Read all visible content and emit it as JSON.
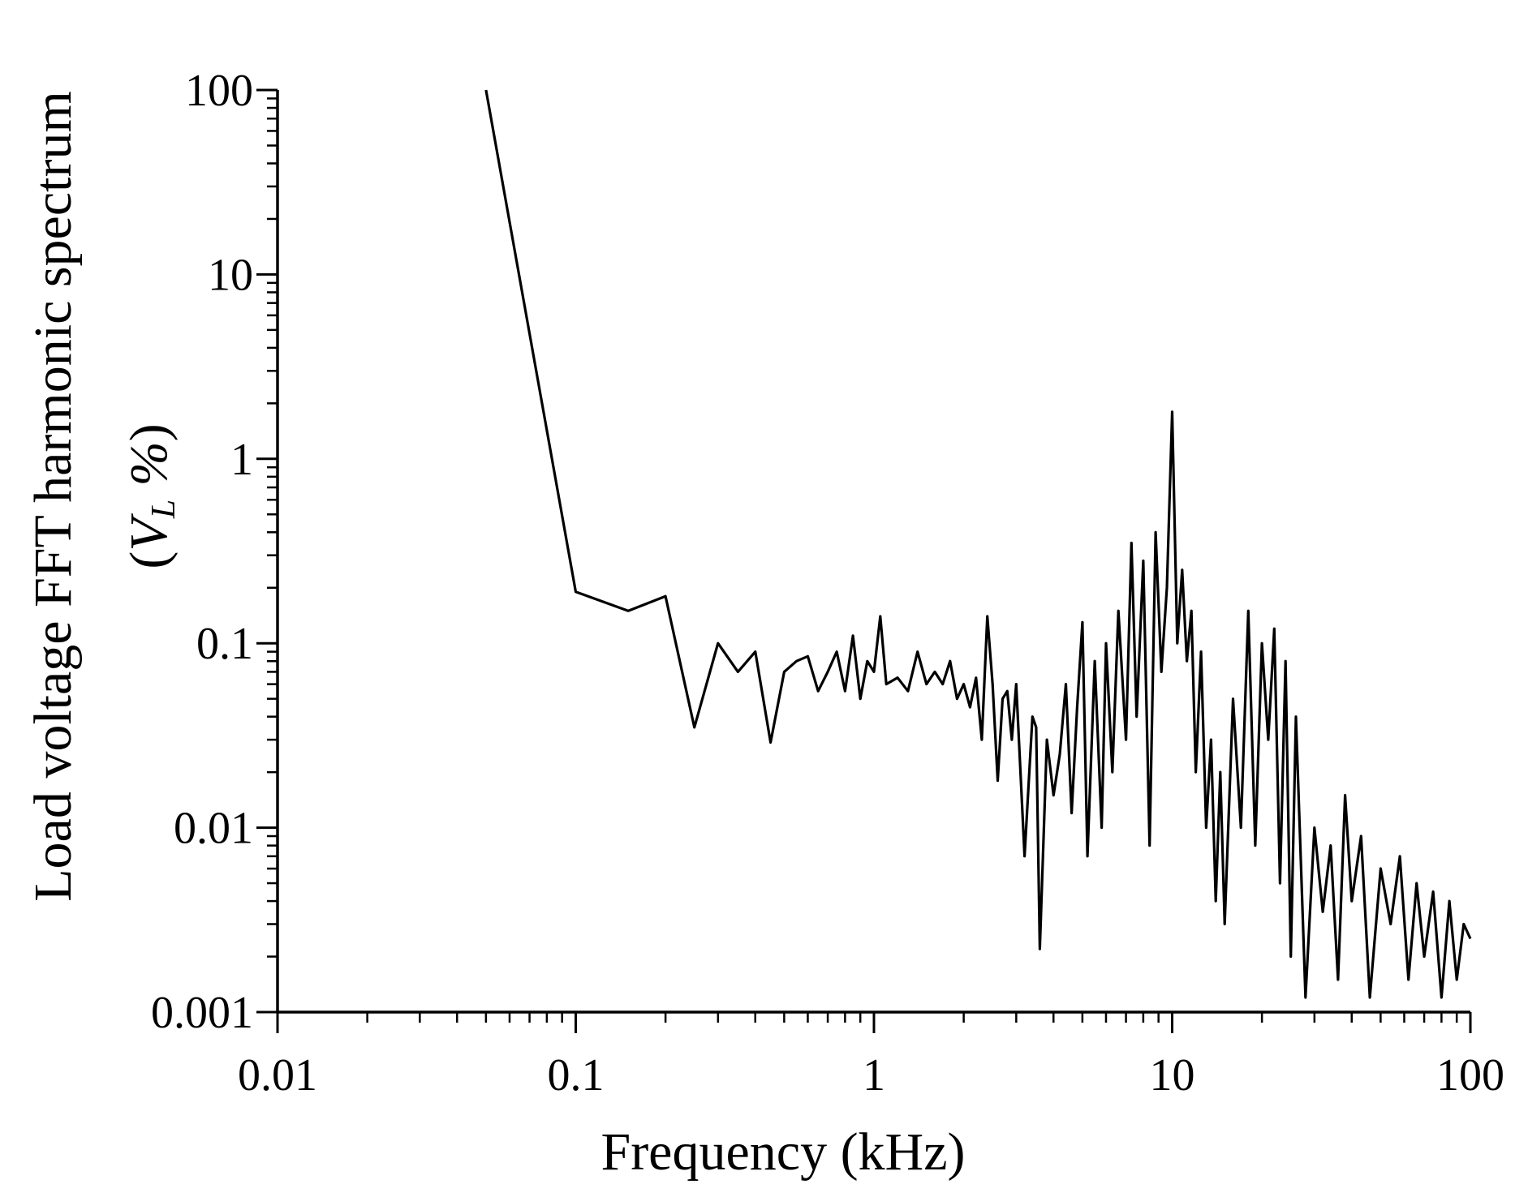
{
  "chart_data": {
    "type": "line",
    "xlabel": "Frequency (kHz)",
    "ylabel": "Load voltage FFT harmonic spectrum",
    "ylabel_unit": {
      "open": "(",
      "var": "V",
      "sub": "L",
      "pct": " %",
      "close": ")"
    },
    "x_scale": "log",
    "y_scale": "log",
    "xlim": [
      0.01,
      100
    ],
    "ylim": [
      0.001,
      100
    ],
    "x_ticks": [
      0.01,
      0.1,
      1,
      10,
      100
    ],
    "x_tick_labels": [
      "0.01",
      "0.1",
      "1",
      "10",
      "100"
    ],
    "y_ticks": [
      0.001,
      0.01,
      0.1,
      1,
      10,
      100
    ],
    "y_tick_labels": [
      "0.001",
      "0.01",
      "0.1",
      "1",
      "10",
      "100"
    ],
    "grid": false,
    "line_color": "#000000",
    "series": [
      {
        "x": [
          0.05,
          0.1,
          0.15,
          0.2,
          0.25,
          0.3,
          0.35,
          0.4,
          0.45,
          0.5,
          0.55,
          0.6,
          0.65,
          0.7,
          0.75,
          0.8,
          0.85,
          0.9,
          0.95,
          1.0,
          1.05,
          1.1,
          1.2,
          1.3,
          1.4,
          1.5,
          1.6,
          1.7,
          1.8,
          1.9,
          2.0,
          2.1,
          2.2,
          2.3,
          2.4,
          2.5,
          2.6,
          2.7,
          2.8,
          2.9,
          3.0,
          3.2,
          3.4,
          3.5,
          3.6,
          3.8,
          4.0,
          4.2,
          4.4,
          4.6,
          4.8,
          5.0,
          5.2,
          5.5,
          5.8,
          6.0,
          6.3,
          6.6,
          7.0,
          7.3,
          7.6,
          8.0,
          8.4,
          8.8,
          9.2,
          9.6,
          10.0,
          10.4,
          10.8,
          11.2,
          11.6,
          12.0,
          12.5,
          13.0,
          13.5,
          14.0,
          14.5,
          15.0,
          16.0,
          17.0,
          18.0,
          19.0,
          20.0,
          21.0,
          22.0,
          23.0,
          24.0,
          25.0,
          26.0,
          28.0,
          30.0,
          32.0,
          34.0,
          36.0,
          38.0,
          40.0,
          43.0,
          46.0,
          50.0,
          54.0,
          58.0,
          62.0,
          66.0,
          70.0,
          75.0,
          80.0,
          85.0,
          90.0,
          95.0,
          100.0
        ],
        "y": [
          100,
          0.19,
          0.15,
          0.18,
          0.035,
          0.1,
          0.07,
          0.09,
          0.029,
          0.07,
          0.08,
          0.085,
          0.055,
          0.07,
          0.09,
          0.055,
          0.11,
          0.05,
          0.08,
          0.07,
          0.14,
          0.06,
          0.065,
          0.055,
          0.09,
          0.06,
          0.07,
          0.06,
          0.08,
          0.05,
          0.06,
          0.045,
          0.065,
          0.03,
          0.14,
          0.06,
          0.018,
          0.05,
          0.055,
          0.03,
          0.06,
          0.007,
          0.04,
          0.035,
          0.0022,
          0.03,
          0.015,
          0.025,
          0.06,
          0.012,
          0.045,
          0.13,
          0.007,
          0.08,
          0.01,
          0.1,
          0.02,
          0.15,
          0.03,
          0.35,
          0.04,
          0.28,
          0.008,
          0.4,
          0.07,
          0.2,
          1.8,
          0.1,
          0.25,
          0.08,
          0.15,
          0.02,
          0.09,
          0.01,
          0.03,
          0.004,
          0.02,
          0.003,
          0.05,
          0.01,
          0.15,
          0.008,
          0.1,
          0.03,
          0.12,
          0.005,
          0.08,
          0.002,
          0.04,
          0.0012,
          0.01,
          0.0035,
          0.008,
          0.0015,
          0.015,
          0.004,
          0.009,
          0.0012,
          0.006,
          0.003,
          0.007,
          0.0015,
          0.005,
          0.002,
          0.0045,
          0.0012,
          0.004,
          0.0015,
          0.003,
          0.0025
        ]
      }
    ]
  }
}
